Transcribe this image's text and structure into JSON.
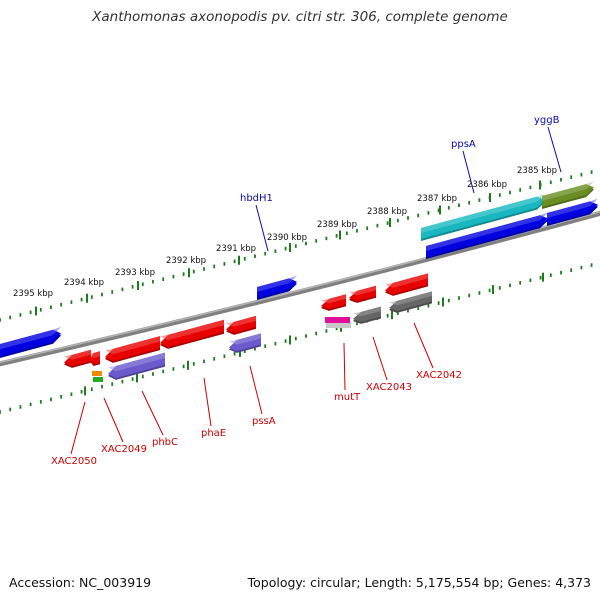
{
  "title": "Xanthomonas axonopodis pv. citri str. 306, complete genome",
  "footer": {
    "accession": "Accession: NC_003919",
    "stats": "Topology: circular; Length: 5,175,554 bp; Genes: 4,373"
  },
  "colors": {
    "backbone": "#8a8a8a",
    "tick": "#1e7a1e",
    "forward_label": "#0a0aa8",
    "reverse_label": "#cc0000",
    "red": "#e80000",
    "blue": "#0000e0",
    "slate": "#6a5acd",
    "cyan": "#19b8c0",
    "olive": "#6b8e23",
    "gray": "#666666",
    "magenta": "#e0109a",
    "orange": "#f08a00",
    "green": "#22aa22"
  },
  "scale_labels": [
    "2395 kbp",
    "2394 kbp",
    "2393 kbp",
    "2392 kbp",
    "2391 kbp",
    "2390 kbp",
    "2389 kbp",
    "2388 kbp",
    "2387 kbp",
    "2386 kbp",
    "2385 kbp"
  ],
  "forward_labels": [
    "hbdH1",
    "ppsA",
    "yggB"
  ],
  "reverse_labels": [
    "XAC2050",
    "XAC2049",
    "phbC",
    "phaE",
    "pssA",
    "mutT",
    "XAC2043",
    "XAC2042"
  ]
}
